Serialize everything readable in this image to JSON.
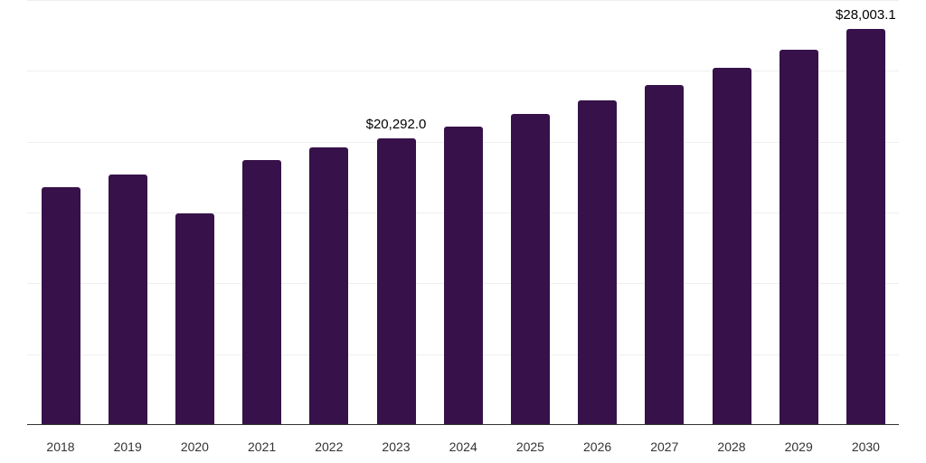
{
  "chart_data": {
    "type": "bar",
    "title": "",
    "xlabel": "",
    "ylabel": "",
    "categories": [
      "2018",
      "2019",
      "2020",
      "2021",
      "2022",
      "2023",
      "2024",
      "2025",
      "2026",
      "2027",
      "2028",
      "2029",
      "2030"
    ],
    "values": [
      16830,
      17730,
      14980,
      18750,
      19650,
      20292.0,
      21120,
      22020,
      22980,
      24060,
      25280,
      26560,
      28003.1
    ],
    "data_labels": {
      "2023": "$20,292.0",
      "2030": "$28,003.1"
    },
    "ylim": [
      0,
      30000
    ],
    "grid": true,
    "legend": null,
    "bar_color": "#371149"
  },
  "labels": {
    "label_2023": "$20,292.0",
    "label_2030": "$28,003.1"
  }
}
